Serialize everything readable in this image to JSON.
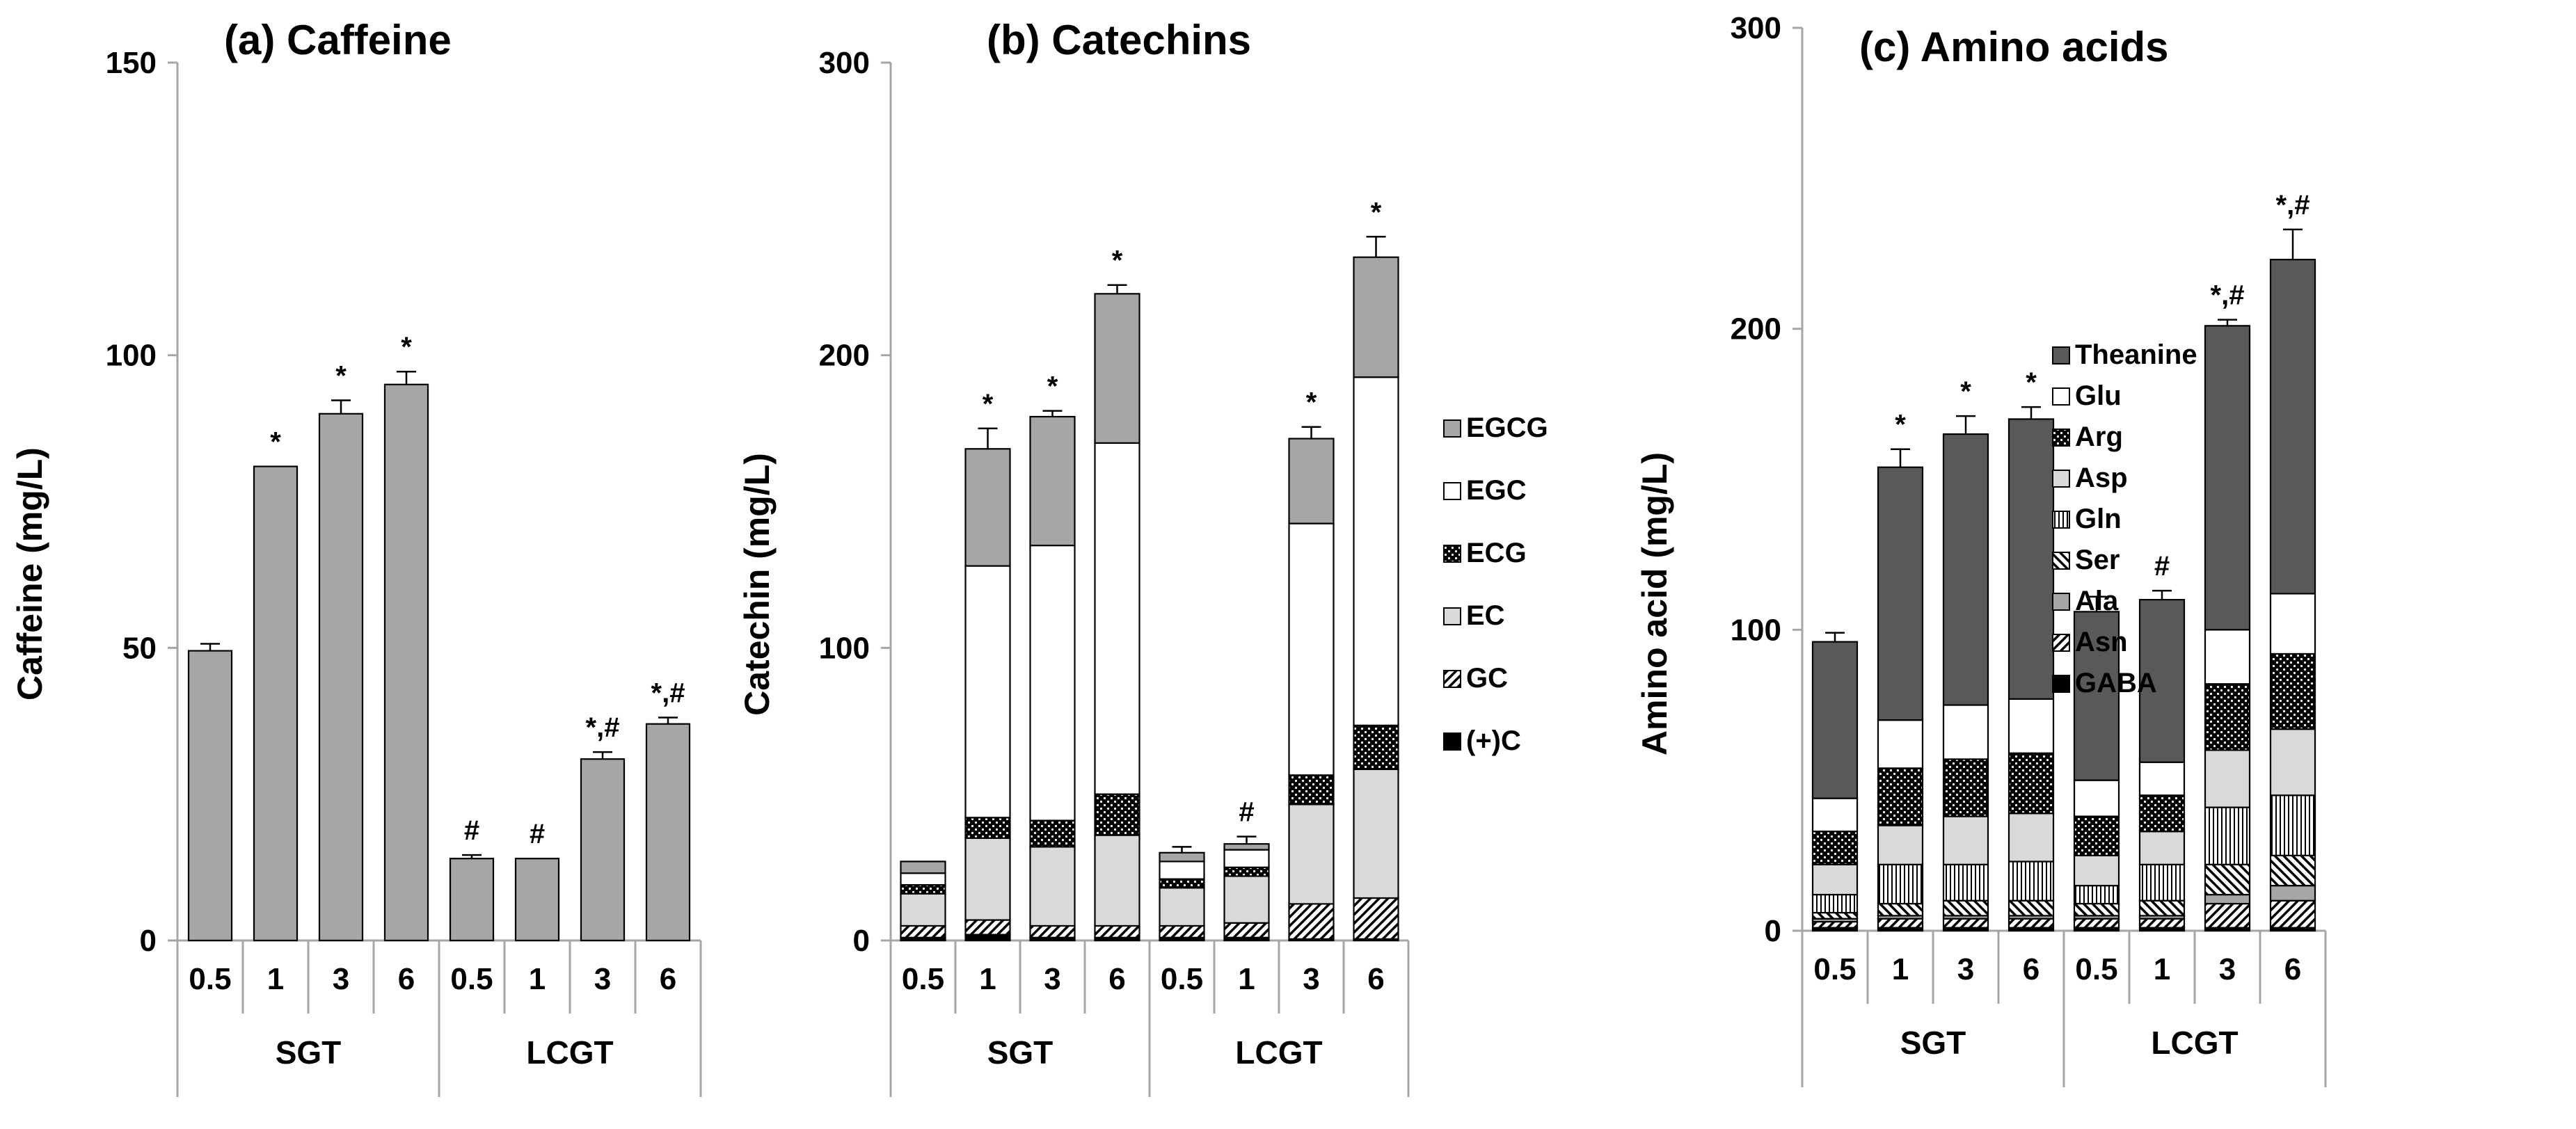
{
  "chart_data": [
    {
      "type": "bar",
      "title": "(a) Caffeine",
      "ylabel": "Caffeine (mg/L)",
      "ylim": [
        0,
        150
      ],
      "yticks": [
        0,
        50,
        100,
        150
      ],
      "groups": [
        "SGT",
        "LCGT"
      ],
      "categories": [
        "0.5",
        "1",
        "3",
        "6",
        "0.5",
        "1",
        "3",
        "6"
      ],
      "series": [
        {
          "name": "Caffeine",
          "color": "#a6a6a6",
          "values": [
            49.5,
            81,
            90,
            95,
            14,
            14,
            31,
            37
          ]
        }
      ],
      "errors": [
        1.2,
        0,
        2.3,
        2.2,
        0.6,
        0,
        1.2,
        1.1
      ],
      "annotations": [
        "",
        "*",
        "*",
        "*",
        "#",
        "#",
        "*,#",
        "*,#"
      ]
    },
    {
      "type": "bar",
      "stacked": true,
      "title": "(b) Catechins",
      "ylabel": "Catechin (mg/L)",
      "ylim": [
        0,
        300
      ],
      "yticks": [
        0,
        100,
        200,
        300
      ],
      "groups": [
        "SGT",
        "LCGT"
      ],
      "categories": [
        "0.5",
        "1",
        "3",
        "6",
        "0.5",
        "1",
        "3",
        "6"
      ],
      "series": [
        {
          "name": "(+)C",
          "color": "#000000",
          "values": [
            1,
            2,
            1,
            1,
            1,
            1,
            0.5,
            0.5
          ]
        },
        {
          "name": "GC",
          "color": "#ffffff",
          "values": [
            4,
            5,
            4,
            4,
            4,
            5,
            12,
            14
          ]
        },
        {
          "name": "EC",
          "color": "#d9d9d9",
          "values": [
            11,
            28,
            27,
            31,
            13,
            16,
            34,
            44
          ]
        },
        {
          "name": "ECG",
          "color": "#000000",
          "values": [
            3,
            7,
            9,
            14,
            3,
            3,
            10,
            15
          ]
        },
        {
          "name": "EGC",
          "color": "#ffffff",
          "values": [
            4,
            86,
            94,
            120,
            6,
            6,
            86,
            119
          ]
        },
        {
          "name": "EGCG",
          "color": "#a6a6a6",
          "values": [
            4,
            40,
            44,
            51,
            3,
            2,
            29,
            41
          ]
        }
      ],
      "errors": [
        0,
        7,
        2,
        3,
        2,
        2.5,
        4,
        7
      ],
      "annotations": [
        "",
        "*",
        "*",
        "*",
        "",
        "#",
        "*",
        "*"
      ],
      "legend": [
        "EGCG",
        "EGC",
        "ECG",
        "EC",
        "GC",
        "(+)C"
      ]
    },
    {
      "type": "bar",
      "stacked": true,
      "title": "(c) Amino acids",
      "ylabel": "Amino acid (mg/L)",
      "ylim": [
        0,
        300
      ],
      "yticks": [
        0,
        100,
        200,
        300
      ],
      "groups": [
        "SGT",
        "LCGT"
      ],
      "categories": [
        "0.5",
        "1",
        "3",
        "6",
        "0.5",
        "1",
        "3",
        "6"
      ],
      "series": [
        {
          "name": "GABA",
          "color": "#000000",
          "values": [
            1,
            1,
            1,
            1,
            1,
            1,
            1,
            1
          ]
        },
        {
          "name": "Asn",
          "color": "#ffffff",
          "values": [
            2,
            3,
            3,
            3,
            3,
            3,
            8,
            9
          ]
        },
        {
          "name": "Ala",
          "color": "#a6a6a6",
          "values": [
            1,
            1,
            1,
            1,
            1,
            1,
            3,
            5
          ]
        },
        {
          "name": "Ser",
          "color": "#ffffff",
          "values": [
            2,
            4,
            5,
            5,
            4,
            5,
            10,
            10
          ]
        },
        {
          "name": "Gln",
          "color": "#ffffff",
          "values": [
            6,
            13,
            12,
            13,
            6,
            12,
            19,
            20
          ]
        },
        {
          "name": "Asp",
          "color": "#d9d9d9",
          "values": [
            10,
            13,
            16,
            16,
            10,
            11,
            19,
            22
          ]
        },
        {
          "name": "Arg",
          "color": "#000000",
          "values": [
            11,
            19,
            19,
            20,
            13,
            12,
            22,
            25
          ]
        },
        {
          "name": "Glu",
          "color": "#ffffff",
          "values": [
            11,
            16,
            18,
            18,
            12,
            11,
            18,
            20
          ]
        },
        {
          "name": "Theanine",
          "color": "#595959",
          "values": [
            52,
            84,
            90,
            93,
            56,
            54,
            101,
            111
          ]
        }
      ],
      "errors": [
        3,
        6,
        6,
        4,
        5,
        3,
        2,
        10
      ],
      "annotations": [
        "",
        "*",
        "*",
        "*",
        "",
        "#",
        "*,#",
        "*,#"
      ],
      "legend": [
        "Theanine",
        "Glu",
        "Arg",
        "Asp",
        "Gln",
        "Ser",
        "Ala",
        "Asn",
        "GABA"
      ]
    }
  ]
}
